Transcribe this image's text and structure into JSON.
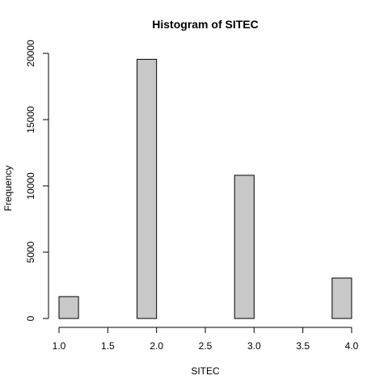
{
  "chart_data": {
    "type": "bar",
    "title": "Histogram of SITEC",
    "xlabel": "SITEC",
    "ylabel": "Frequency",
    "bin_edges": [
      1.0,
      1.2,
      1.4,
      1.6,
      1.8,
      2.0,
      2.2,
      2.4,
      2.6,
      2.8,
      3.0,
      3.2,
      3.4,
      3.6,
      3.8,
      4.0
    ],
    "values": [
      1650,
      0,
      0,
      0,
      19550,
      0,
      0,
      0,
      0,
      10800,
      0,
      0,
      0,
      0,
      3050
    ],
    "xlim": [
      1.0,
      4.0
    ],
    "ylim": [
      0,
      20000
    ],
    "xticks": [
      "1.0",
      "1.5",
      "2.0",
      "2.5",
      "3.0",
      "3.5",
      "4.0"
    ],
    "yticks": [
      "0",
      "5000",
      "10000",
      "15000",
      "20000"
    ],
    "bar_color": "#c8c8c8",
    "grid": false,
    "legend": "none"
  }
}
